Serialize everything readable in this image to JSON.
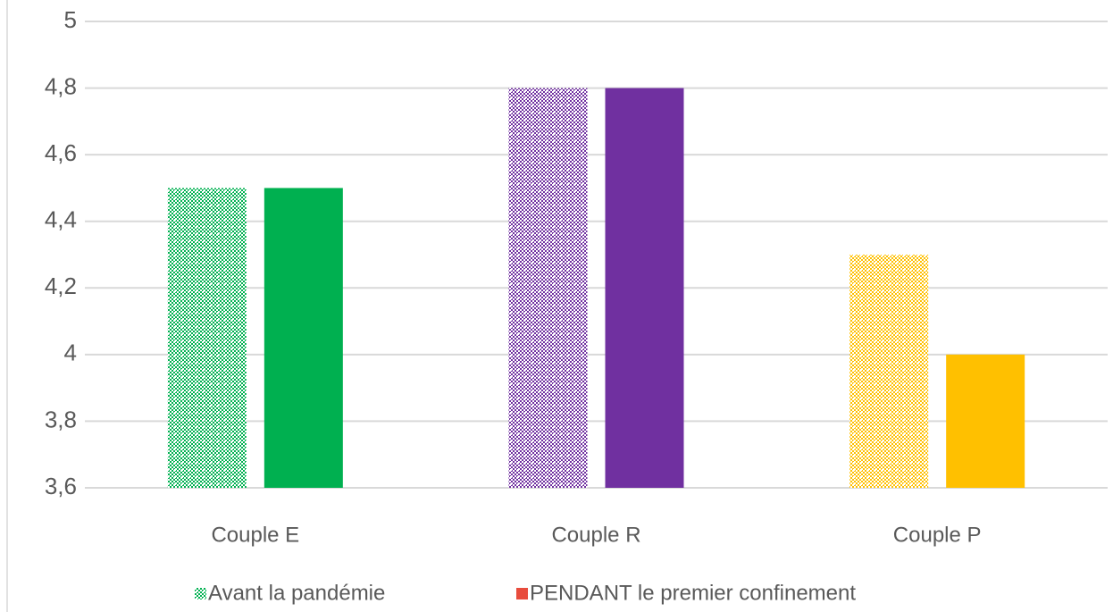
{
  "chart_data": {
    "type": "bar",
    "categories": [
      "Couple E",
      "Couple R",
      "Couple P"
    ],
    "category_colors": [
      "#00b050",
      "#7030a0",
      "#ffc000"
    ],
    "series": [
      {
        "name": "Avant la pandémie",
        "color": "#00b050",
        "pattern": "checker",
        "values": [
          4.5,
          4.8,
          4.3
        ]
      },
      {
        "name": "PENDANT le premier confinement",
        "color": "#e84c3d",
        "values": [
          4.5,
          4.8,
          4.0
        ]
      }
    ],
    "ylim": [
      3.6,
      5
    ],
    "yticks": [
      {
        "value": 3.6,
        "label": "3,6"
      },
      {
        "value": 3.8,
        "label": "3,8"
      },
      4,
      {
        "value": 4.2,
        "label": "4,2"
      },
      {
        "value": 4.4,
        "label": "4,4"
      },
      {
        "value": 4.6,
        "label": "4,6"
      },
      {
        "value": 4.8,
        "label": "4,8"
      },
      5
    ],
    "grid": true,
    "legend": "bottom"
  }
}
